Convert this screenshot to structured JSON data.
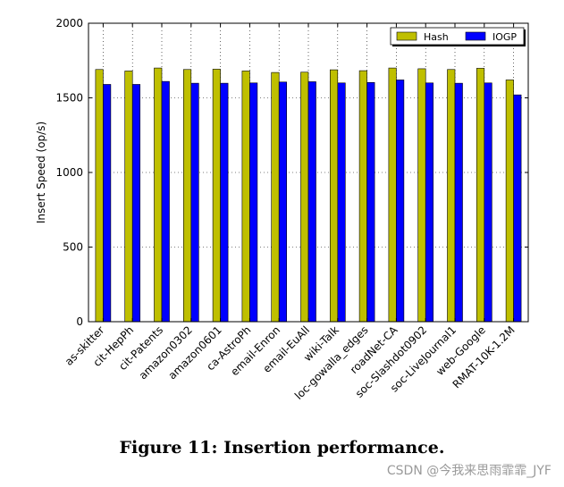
{
  "chart_data": {
    "type": "bar",
    "ylabel": "Insert Speed (op/s)",
    "xlabel": "",
    "ylim": [
      0,
      2000
    ],
    "yticks": [
      0,
      500,
      1000,
      1500,
      2000
    ],
    "grid": true,
    "legend_position": "top-right",
    "categories": [
      "as-skitter",
      "cit-HepPh",
      "cit-Patents",
      "amazon0302",
      "amazon0601",
      "ca-AstroPh",
      "email-Enron",
      "email-EuAll",
      "wiki-Talk",
      "loc-gowalla_edges",
      "roadNet-CA",
      "soc-Slashdot0902",
      "soc-LiveJournal1",
      "web-Google",
      "RMAT-10K-1.2M"
    ],
    "series": [
      {
        "name": "Hash",
        "color": "#bfbf00",
        "values": [
          1690,
          1680,
          1700,
          1690,
          1692,
          1680,
          1670,
          1672,
          1688,
          1682,
          1700,
          1695,
          1690,
          1698,
          1620
        ]
      },
      {
        "name": "IOGP",
        "color": "#0000ff",
        "values": [
          1590,
          1590,
          1610,
          1598,
          1598,
          1600,
          1606,
          1608,
          1600,
          1603,
          1620,
          1600,
          1598,
          1600,
          1520
        ]
      }
    ]
  },
  "caption": "Figure 11: Insertion performance.",
  "watermark": "CSDN @今我来思雨霏霏_JYF"
}
